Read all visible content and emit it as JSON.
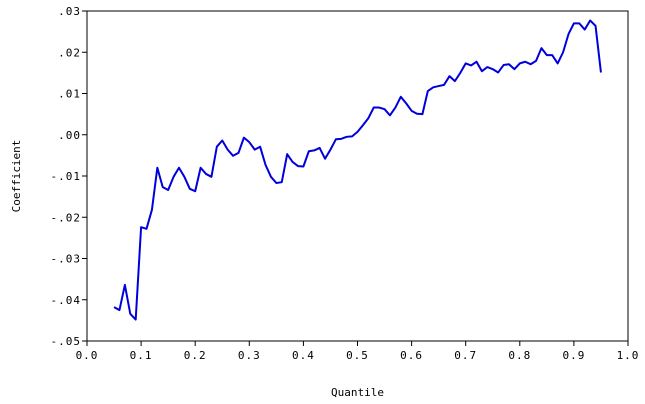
{
  "chart_data": {
    "type": "line",
    "xlabel": "Quantile",
    "ylabel": "Coefficient",
    "xlim": [
      0.0,
      1.0
    ],
    "ylim": [
      -0.05,
      0.03
    ],
    "grid": false,
    "line_color": "#0000dd",
    "x_ticks": [
      0.0,
      0.1,
      0.2,
      0.3,
      0.4,
      0.5,
      0.6,
      0.7,
      0.8,
      0.9,
      1.0
    ],
    "x_tick_labels": [
      "0.0",
      "0.1",
      "0.2",
      "0.3",
      "0.4",
      "0.5",
      "0.6",
      "0.7",
      "0.8",
      "0.9",
      "1.0"
    ],
    "y_ticks": [
      0.03,
      0.02,
      0.01,
      0.0,
      -0.01,
      -0.02,
      -0.03,
      -0.04,
      -0.05
    ],
    "y_tick_labels": [
      ".03",
      ".02",
      ".01",
      ".00",
      "-.01",
      "-.02",
      "-.03",
      "-.04",
      "-.05"
    ],
    "series": [
      {
        "x": [
          0.05,
          0.06,
          0.07,
          0.08,
          0.09,
          0.1,
          0.11,
          0.12,
          0.13,
          0.14,
          0.15,
          0.16,
          0.17,
          0.18,
          0.19,
          0.2,
          0.21,
          0.22,
          0.23,
          0.24,
          0.25,
          0.26,
          0.27,
          0.28,
          0.29,
          0.3,
          0.31,
          0.32,
          0.33,
          0.34,
          0.35,
          0.36,
          0.37,
          0.38,
          0.39,
          0.4,
          0.41,
          0.42,
          0.43,
          0.44,
          0.45,
          0.46,
          0.47,
          0.48,
          0.49,
          0.5,
          0.51,
          0.52,
          0.53,
          0.54,
          0.55,
          0.56,
          0.57,
          0.58,
          0.59,
          0.6,
          0.61,
          0.62,
          0.63,
          0.64,
          0.65,
          0.66,
          0.67,
          0.68,
          0.69,
          0.7,
          0.71,
          0.72,
          0.73,
          0.74,
          0.75,
          0.76,
          0.77,
          0.78,
          0.79,
          0.8,
          0.81,
          0.82,
          0.83,
          0.84,
          0.85,
          0.86,
          0.87,
          0.88,
          0.89,
          0.9,
          0.91,
          0.92,
          0.93,
          0.94,
          0.95
        ],
        "y": [
          -0.0418,
          -0.0425,
          -0.0364,
          -0.0434,
          -0.0448,
          -0.0224,
          -0.0228,
          -0.0182,
          -0.008,
          -0.0127,
          -0.0134,
          -0.0102,
          -0.008,
          -0.0102,
          -0.0131,
          -0.0137,
          -0.008,
          -0.0095,
          -0.0102,
          -0.0029,
          -0.0014,
          -0.0036,
          -0.0051,
          -0.0044,
          -0.0007,
          -0.0018,
          -0.0036,
          -0.0029,
          -0.0073,
          -0.0102,
          -0.0117,
          -0.0115,
          -0.0047,
          -0.0066,
          -0.0076,
          -0.0077,
          -0.004,
          -0.0038,
          -0.0032,
          -0.0058,
          -0.0036,
          -0.0011,
          -0.001,
          -0.0005,
          -0.0004,
          0.0007,
          0.0023,
          0.004,
          0.0066,
          0.0066,
          0.0062,
          0.0047,
          0.0066,
          0.0092,
          0.0076,
          0.0058,
          0.0051,
          0.005,
          0.0106,
          0.0115,
          0.0118,
          0.0121,
          0.0142,
          0.013,
          0.015,
          0.0173,
          0.0168,
          0.0177,
          0.0154,
          0.0164,
          0.0159,
          0.0151,
          0.0169,
          0.0171,
          0.0159,
          0.0173,
          0.0177,
          0.0171,
          0.0179,
          0.021,
          0.0193,
          0.0193,
          0.0173,
          0.02,
          0.0244,
          0.027,
          0.027,
          0.0255,
          0.0277,
          0.0264,
          0.0151
        ]
      }
    ]
  }
}
